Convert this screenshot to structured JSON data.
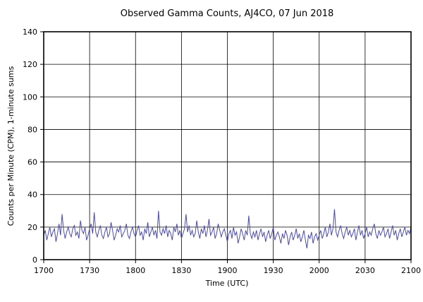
{
  "chart_data": {
    "type": "line",
    "title": "Observed Gamma Counts, AJ4CO, 07 Jun 2018",
    "xlabel": "Time (UTC)",
    "ylabel": "Counts per Minute (CPM), 1-minute sums",
    "x_tick_labels": [
      "1700",
      "1730",
      "1800",
      "1830",
      "1900",
      "1930",
      "2000",
      "2030",
      "2100"
    ],
    "y_ticks": [
      0,
      20,
      40,
      60,
      80,
      100,
      120,
      140
    ],
    "ylim": [
      0,
      140
    ],
    "grid": "on",
    "legend": "none",
    "line_color": "#4a4aa0",
    "series": [
      {
        "name": "gamma-counts-1min",
        "values": [
          15,
          18,
          12,
          16,
          20,
          14,
          17,
          19,
          11,
          16,
          22,
          15,
          28,
          18,
          13,
          17,
          20,
          16,
          14,
          19,
          21,
          15,
          17,
          13,
          24,
          18,
          16,
          20,
          12,
          15,
          19,
          22,
          16,
          29,
          17,
          14,
          18,
          21,
          15,
          13,
          17,
          20,
          14,
          16,
          23,
          18,
          12,
          15,
          19,
          17,
          21,
          14,
          16,
          18,
          22,
          15,
          13,
          17,
          20,
          16,
          14,
          18,
          21,
          15,
          17,
          12,
          19,
          16,
          23,
          14,
          17,
          20,
          15,
          18,
          13,
          30,
          17,
          15,
          19,
          16,
          21,
          14,
          18,
          16,
          12,
          20,
          17,
          22,
          15,
          18,
          13,
          16,
          19,
          28,
          17,
          21,
          15,
          18,
          14,
          16,
          24,
          17,
          13,
          19,
          16,
          21,
          14,
          18,
          25,
          15,
          17,
          20,
          13,
          16,
          22,
          18,
          14,
          17,
          19,
          15,
          11,
          16,
          18,
          13,
          20,
          15,
          17,
          10,
          14,
          19,
          16,
          12,
          18,
          15,
          27,
          16,
          13,
          17,
          14,
          18,
          12,
          16,
          19,
          14,
          17,
          11,
          15,
          18,
          13,
          16,
          20,
          12,
          15,
          17,
          14,
          10,
          16,
          13,
          18,
          15,
          9,
          14,
          17,
          12,
          15,
          19,
          13,
          16,
          11,
          14,
          18,
          12,
          7,
          15,
          13,
          17,
          10,
          14,
          16,
          12,
          15,
          18,
          13,
          16,
          20,
          14,
          17,
          22,
          15,
          19,
          31,
          17,
          14,
          18,
          21,
          16,
          13,
          17,
          20,
          15,
          18,
          14,
          16,
          19,
          12,
          17,
          21,
          15,
          18,
          13,
          16,
          20,
          14,
          17,
          15,
          19,
          22,
          16,
          13,
          18,
          15,
          17,
          20,
          14,
          16,
          19,
          13,
          17,
          21,
          15,
          18,
          12,
          16,
          19,
          14,
          17,
          20,
          15,
          18,
          16,
          20
        ]
      }
    ]
  }
}
